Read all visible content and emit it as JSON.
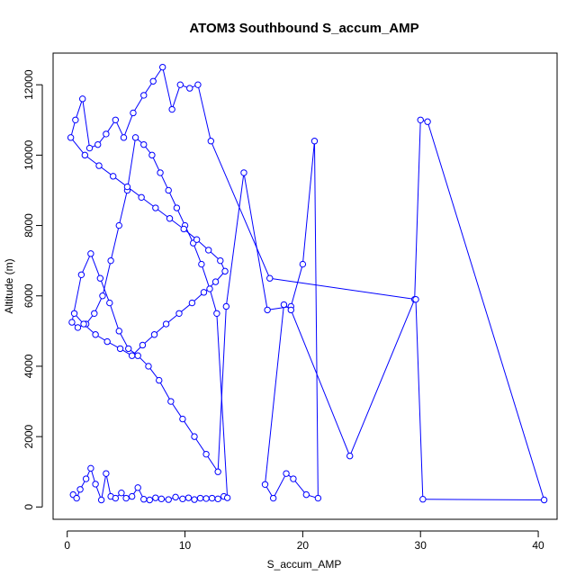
{
  "chart_data": {
    "type": "line",
    "title": "ATOM3 Southbound S_accum_AMP",
    "xlabel": "S_accum_AMP",
    "ylabel": "Altitude (m)",
    "xlim": [
      -1.2,
      41.6
    ],
    "ylim": [
      -350,
      12900
    ],
    "xticks": [
      0,
      10,
      20,
      30,
      40
    ],
    "yticks": [
      0,
      2000,
      4000,
      6000,
      8000,
      10000,
      12000
    ],
    "grid": false,
    "colors": {
      "series": "#0000ff",
      "axes": "#000000",
      "background": "#ffffff"
    },
    "series": [
      {
        "marker": "open-circle",
        "x": [
          0.5,
          0.8,
          1.1,
          1.6,
          2.0,
          2.4,
          2.9,
          3.3,
          3.7,
          4.1,
          4.6,
          5.0,
          5.5,
          6.0,
          6.5,
          7.0,
          7.5,
          8.0,
          8.6,
          9.2,
          9.8,
          10.3,
          10.8,
          11.3,
          11.8,
          12.3,
          12.8,
          13.3,
          13.6,
          12.7,
          12.1,
          11.4,
          10.7,
          10.0,
          9.3,
          8.6,
          7.9,
          7.2,
          6.5,
          5.8,
          5.1,
          4.4,
          3.7,
          3.0,
          2.3,
          1.6,
          0.9,
          0.4,
          1.2,
          2.0,
          2.8,
          3.6,
          4.4,
          5.2,
          6.0,
          6.9,
          7.8,
          8.8,
          9.8,
          10.8,
          11.8,
          12.8,
          13.5,
          15.0,
          17.0,
          19.0,
          20.0,
          21.0,
          21.3,
          20.3,
          19.2,
          18.6,
          17.5,
          16.8,
          18.4,
          19.0,
          24.0,
          29.5,
          30.0,
          30.6,
          40.5,
          30.2,
          29.6,
          17.2,
          12.2,
          11.1,
          10.4,
          9.6,
          8.9,
          8.1,
          7.3,
          6.5,
          5.6,
          4.8,
          4.1,
          3.3,
          2.6,
          1.9,
          1.3,
          0.7,
          0.3,
          1.5,
          2.7,
          3.9,
          5.1,
          6.3,
          7.5,
          8.7,
          9.9,
          11.0,
          12.0,
          13.0,
          13.4,
          12.6,
          11.6,
          10.6,
          9.5,
          8.4,
          7.4,
          6.4,
          5.5,
          4.5,
          3.4,
          2.4,
          1.4,
          0.6
        ],
        "y": [
          350,
          250,
          500,
          800,
          1100,
          650,
          200,
          950,
          300,
          250,
          400,
          250,
          300,
          550,
          220,
          200,
          260,
          230,
          210,
          280,
          230,
          260,
          210,
          250,
          240,
          250,
          230,
          300,
          260,
          5500,
          6200,
          6900,
          7500,
          8000,
          8500,
          9000,
          9500,
          10000,
          10300,
          10500,
          9000,
          8000,
          7000,
          6000,
          5500,
          5200,
          5100,
          5250,
          6600,
          7200,
          6500,
          5800,
          5000,
          4500,
          4300,
          4000,
          3600,
          3000,
          2500,
          2000,
          1500,
          1000,
          5700,
          9500,
          5600,
          5700,
          6900,
          10400,
          250,
          350,
          800,
          950,
          250,
          640,
          5750,
          5600,
          1450,
          5900,
          11000,
          10950,
          200,
          220,
          5900,
          6500,
          10400,
          12000,
          11900,
          12000,
          11300,
          12500,
          12100,
          11700,
          11200,
          10500,
          11000,
          10600,
          10300,
          10200,
          11600,
          11000,
          10500,
          10000,
          9700,
          9400,
          9100,
          8800,
          8500,
          8200,
          7900,
          7600,
          7300,
          7000,
          6700,
          6400,
          6100,
          5800,
          5500,
          5200,
          4900,
          4600,
          4300,
          4500,
          4700,
          4900,
          5200,
          5500
        ]
      }
    ]
  }
}
